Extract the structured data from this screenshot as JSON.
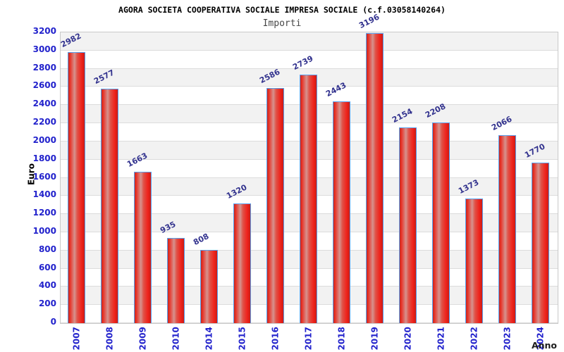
{
  "header": {
    "title": "AGORA SOCIETA COOPERATIVA SOCIALE IMPRESA SOCIALE (c.f.03058140264)",
    "subtitle": "Importi"
  },
  "chart_data": {
    "type": "bar",
    "title": "AGORA SOCIETA COOPERATIVA SOCIALE IMPRESA SOCIALE (c.f.03058140264)",
    "subtitle": "Importi",
    "xlabel": "Anno",
    "ylabel": "Euro",
    "categories": [
      "2007",
      "2008",
      "2009",
      "2010",
      "2014",
      "2015",
      "2016",
      "2017",
      "2018",
      "2019",
      "2020",
      "2021",
      "2022",
      "2023",
      "2024"
    ],
    "values": [
      2982,
      2577,
      1663,
      935,
      808,
      1320,
      2586,
      2739,
      2443,
      3196,
      2154,
      2208,
      1373,
      2066,
      1770
    ],
    "ylim": [
      0,
      3200
    ],
    "ytick_step": 200,
    "grid": "horizontal-bands",
    "legend": "none",
    "colors": {
      "axis_text": "#2222cc",
      "value_label": "#32328e",
      "title_text": "#000000",
      "subtitle_text": "#474747",
      "bar_border": "#58a0ee",
      "bar_fill_gradient": "linear-gradient(90deg,#c4281e 0%,#e83227 10%,#d6928e 38%,#e05248 55%,#ef221b 82%,#c91d16 100%)",
      "band_gray": "#f2f2f2",
      "band_white": "#ffffff",
      "grid_line": "#dcdcdc",
      "plot_border": "#c9c9c9"
    }
  }
}
